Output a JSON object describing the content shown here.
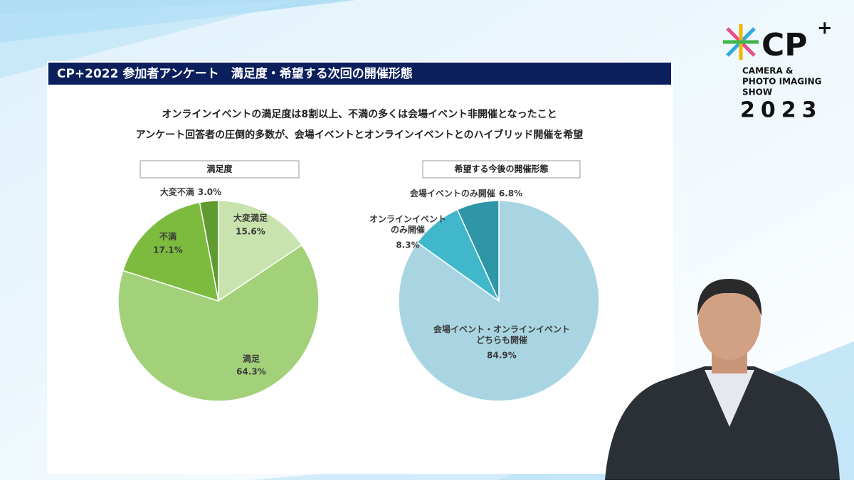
{
  "slide_title": "CP+2022 参加者アンケート　満足度・希望する次回の開催形態",
  "subtitle_lines": [
    "オンラインイベントの満足度は8割以上、不満の多くは会場イベント非開催となったこと",
    "アンケート回答者の圧倒的多数が、会場イベントとオンラインイベントとのハイブリッド開催を希望"
  ],
  "logo": {
    "mark": "CP",
    "plus": "+",
    "lines": [
      "CAMERA &",
      "PHOTO IMAGING",
      "SHOW"
    ],
    "year": "2023"
  },
  "chart_data": [
    {
      "type": "pie",
      "title": "満足度",
      "categories": [
        "大変満足",
        "満足",
        "不満",
        "大変不満"
      ],
      "values": [
        15.6,
        64.3,
        17.1,
        3.0
      ],
      "value_labels": [
        "15.6%",
        "64.3%",
        "17.1%",
        "3.0%"
      ],
      "colors": [
        "#c8e3ad",
        "#a2d17a",
        "#7dbb3f",
        "#5f9b2f"
      ]
    },
    {
      "type": "pie",
      "title": "希望する今後の開催形態",
      "categories": [
        "会場イベント・オンラインイベント\nどちらも開催",
        "オンラインイベント\nのみ開催",
        "会場イベントのみ開催"
      ],
      "values": [
        84.9,
        8.3,
        6.8
      ],
      "value_labels": [
        "84.9%",
        "8.3%",
        "6.8%"
      ],
      "colors": [
        "#a9d5e2",
        "#40b7cb",
        "#2f96a8"
      ]
    }
  ]
}
